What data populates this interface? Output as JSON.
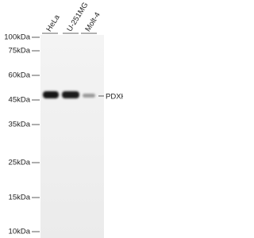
{
  "lanes": [
    "HeLa",
    "U-251MG",
    "Molt-4"
  ],
  "markers": [
    "100kDa",
    "75kDa",
    "60kDa",
    "45kDa",
    "35kDa",
    "25kDa",
    "15kDa",
    "10kDa"
  ],
  "target": "PDXK"
}
